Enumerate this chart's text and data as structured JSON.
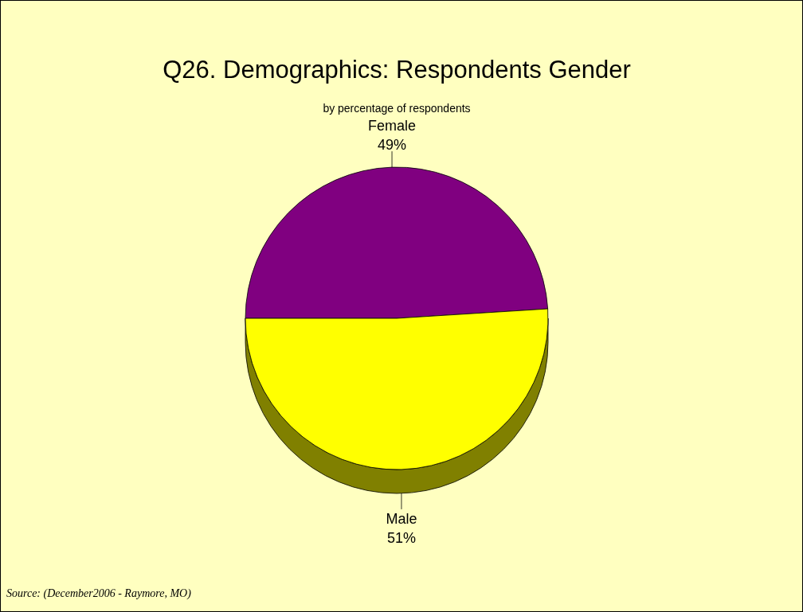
{
  "chart_data": {
    "type": "pie",
    "title": "Q26. Demographics:  Respondents Gender",
    "subtitle": "by percentage of respondents",
    "categories": [
      "Female",
      "Male"
    ],
    "values": [
      49,
      51
    ],
    "colors": [
      "#800080",
      "#ffff00"
    ],
    "value_labels": [
      "49%",
      "51%"
    ],
    "annotations": [
      "Source:  (December2006 - Raymore, MO)"
    ]
  }
}
